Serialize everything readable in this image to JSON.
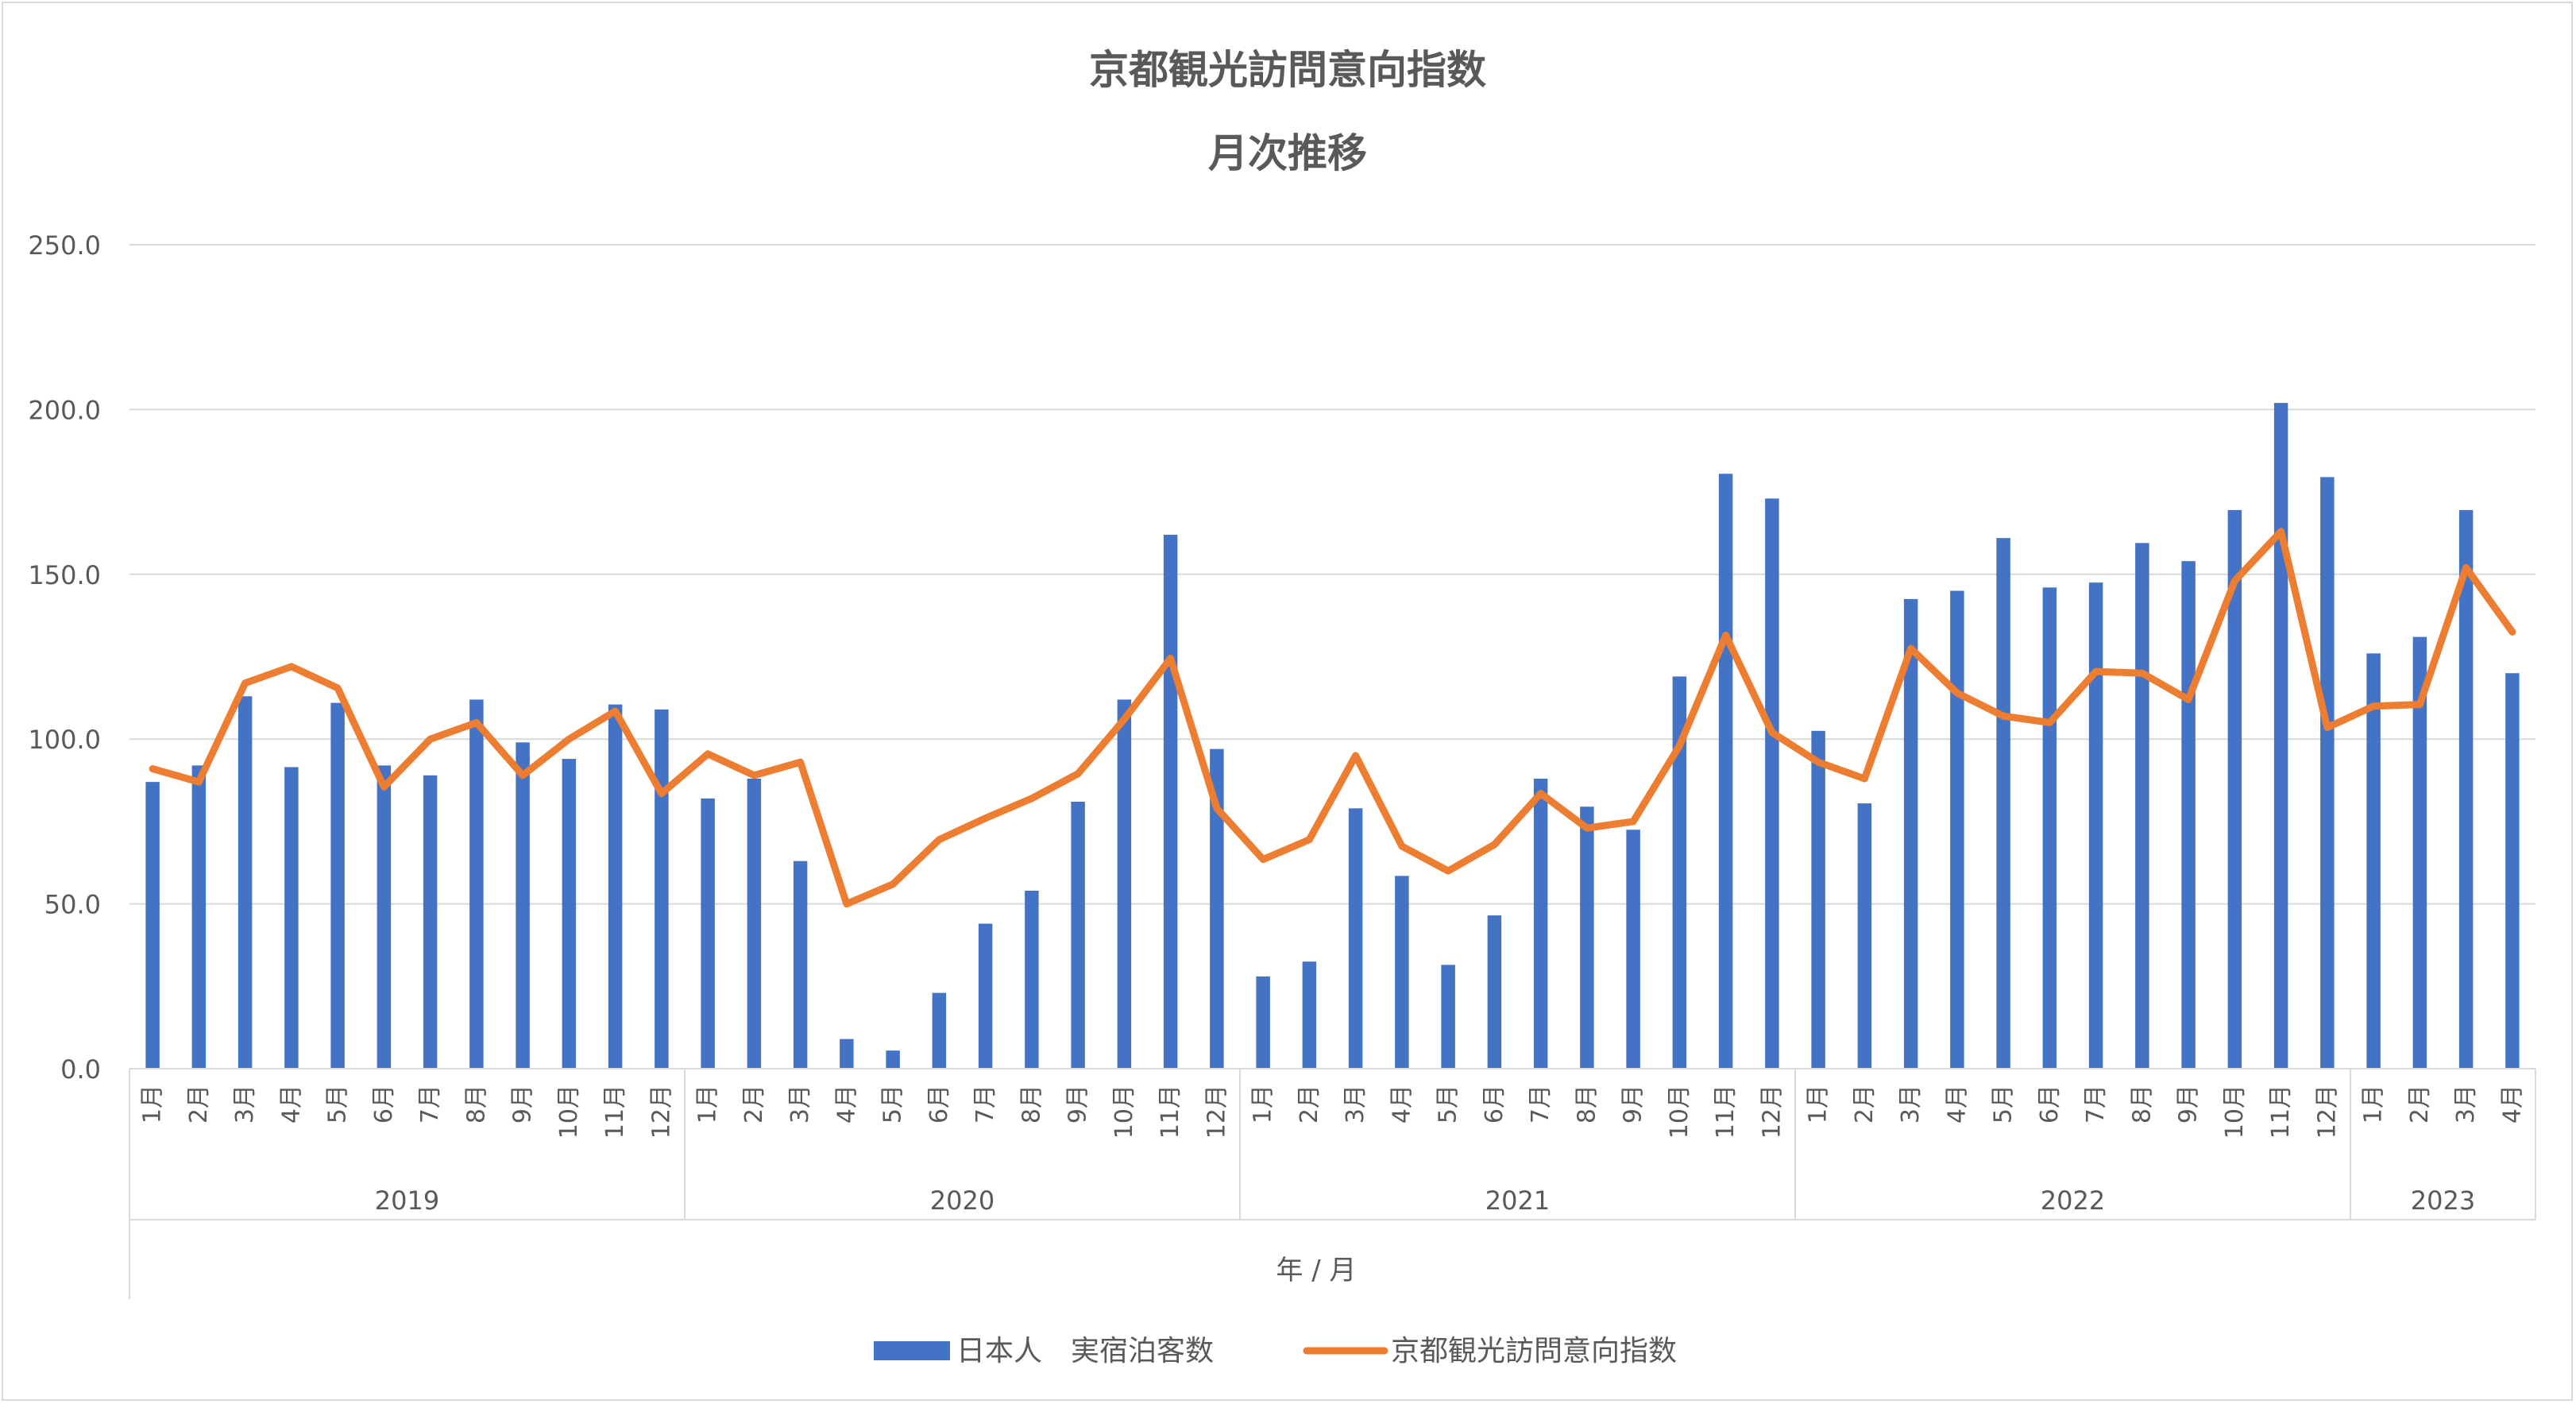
{
  "chart_data": {
    "type": "bar+line",
    "title": "京都観光訪問意向指数",
    "subtitle": "月次推移",
    "xlabel": "年 / 月",
    "ylabel": "",
    "ylim": [
      0,
      250
    ],
    "yticks": [
      "0.0",
      "50.0",
      "100.0",
      "150.0",
      "200.0",
      "250.0"
    ],
    "grid": true,
    "legend_position": "bottom",
    "colors": {
      "bar": "#4472C4",
      "line": "#ED7D31",
      "grid": "#d9d9d9",
      "text": "#595959"
    },
    "years": [
      {
        "label": "2019",
        "months": [
          "1月",
          "2月",
          "3月",
          "4月",
          "5月",
          "6月",
          "7月",
          "8月",
          "9月",
          "10月",
          "11月",
          "12月"
        ]
      },
      {
        "label": "2020",
        "months": [
          "1月",
          "2月",
          "3月",
          "4月",
          "5月",
          "6月",
          "7月",
          "8月",
          "9月",
          "10月",
          "11月",
          "12月"
        ]
      },
      {
        "label": "2021",
        "months": [
          "1月",
          "2月",
          "3月",
          "4月",
          "5月",
          "6月",
          "7月",
          "8月",
          "9月",
          "10月",
          "11月",
          "12月"
        ]
      },
      {
        "label": "2022",
        "months": [
          "1月",
          "2月",
          "3月",
          "4月",
          "5月",
          "6月",
          "7月",
          "8月",
          "9月",
          "10月",
          "11月",
          "12月"
        ]
      },
      {
        "label": "2023",
        "months": [
          "1月",
          "2月",
          "3月",
          "4月"
        ]
      }
    ],
    "series": [
      {
        "name": "日本人　実宿泊客数",
        "type": "bar",
        "values": [
          87,
          92,
          113,
          91.5,
          111,
          92,
          89,
          112,
          99,
          94,
          110.5,
          109,
          82,
          88,
          63,
          9,
          5.5,
          23,
          44,
          54,
          81,
          112,
          162,
          97,
          28,
          32.5,
          79,
          58.5,
          31.5,
          46.5,
          88,
          79.5,
          72.5,
          119,
          180.5,
          173,
          102.5,
          80.5,
          142.5,
          145,
          161,
          146,
          147.5,
          159.5,
          154,
          169.5,
          202,
          179.5,
          126,
          131,
          169.5,
          120
        ]
      },
      {
        "name": "京都観光訪問意向指数",
        "type": "line",
        "values": [
          91,
          87,
          117,
          122,
          115.5,
          85.5,
          100,
          105,
          89,
          100,
          108.5,
          83.5,
          95.5,
          89,
          93,
          50,
          56,
          69.5,
          76,
          82,
          89.5,
          106,
          124.5,
          79,
          63.5,
          69.5,
          95,
          67.5,
          60,
          68,
          83.5,
          73,
          75,
          98,
          131.5,
          102,
          93,
          88,
          127.5,
          114,
          107,
          105,
          120.5,
          120,
          112,
          148,
          163,
          103.5,
          110,
          110.5,
          152,
          132.5
        ]
      }
    ]
  }
}
